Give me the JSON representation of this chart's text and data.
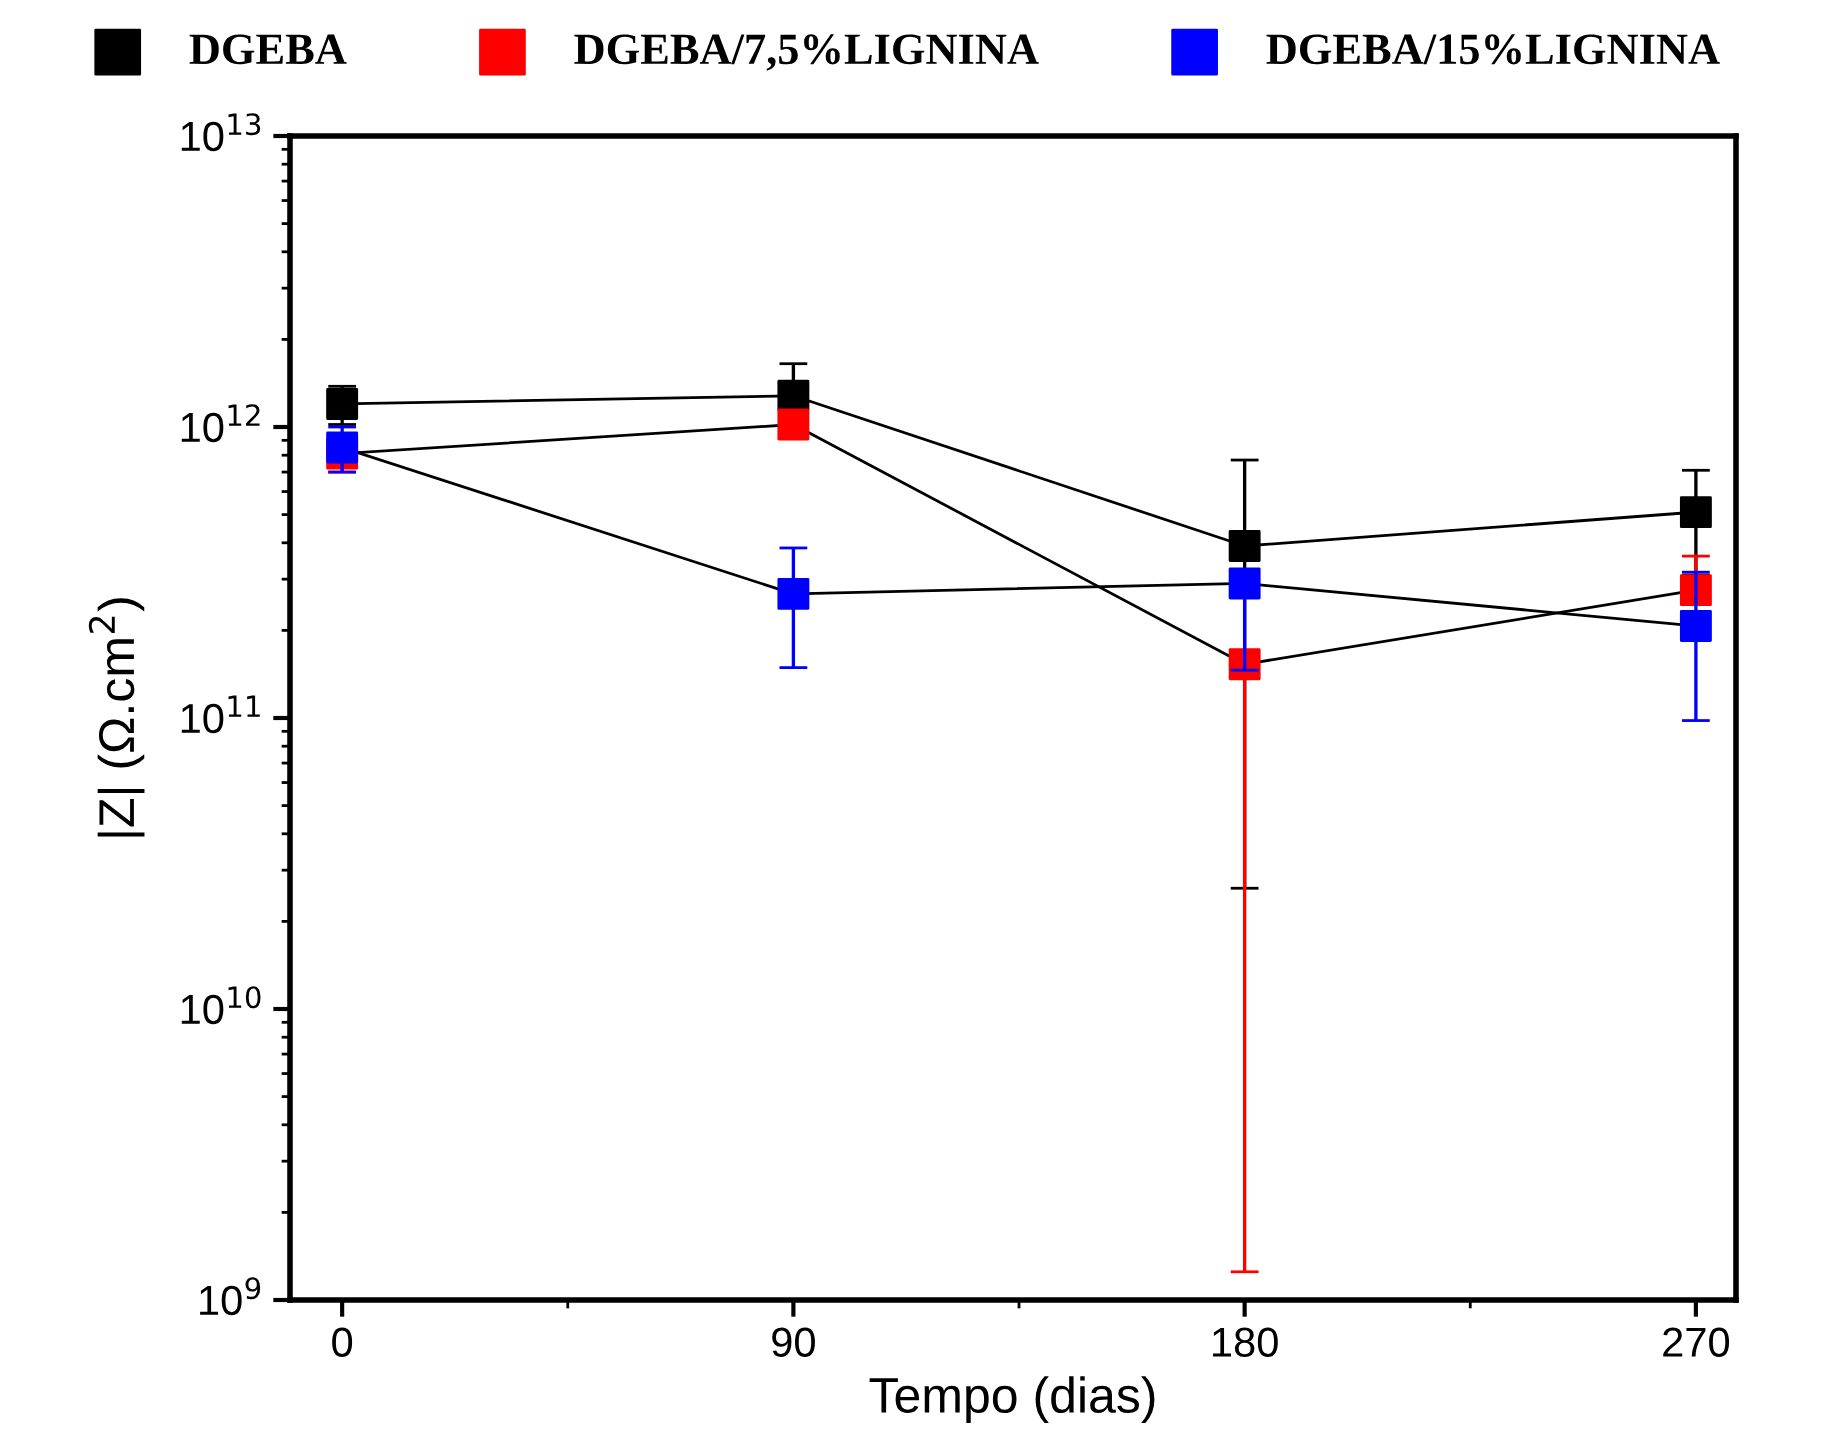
{
  "chart_data": {
    "type": "line",
    "xlabel": "Tempo (dias)",
    "ylabel": "|Z| (Ω.cm$^{2}$)",
    "x": [
      0,
      90,
      180,
      270
    ],
    "series": [
      {
        "name": "DGEBA",
        "color": "#000000",
        "values": [
          1200000000000.0,
          1280000000000.0,
          390000000000.0,
          510000000000.0
        ],
        "errors": [
          [
            1020000000000.0,
            1380000000000.0
          ],
          [
            1140000000000.0,
            1650000000000.0
          ],
          [
            26000000000.0,
            770000000000.0
          ],
          [
            310000000000.0,
            710000000000.0
          ]
        ]
      },
      {
        "name": "DGEBA/7,5%LIGNINA",
        "color": "#ff0000",
        "values": [
          810000000000.0,
          1020000000000.0,
          153000000000.0,
          275000000000.0
        ],
        "errors": [
          [
            700000000000.0,
            920000000000.0
          ],
          null,
          [
            1250000000.0,
            153000000000.0
          ],
          [
            275000000000.0,
            360000000000.0
          ]
        ]
      },
      {
        "name": "DGEBA/15%LIGNINA",
        "color": "#0000ff",
        "values": [
          850000000000.0,
          267000000000.0,
          290000000000.0,
          207000000000.0
        ],
        "errors": [
          [
            700000000000.0,
            1000000000000.0
          ],
          [
            149000000000.0,
            384000000000.0
          ],
          [
            146000000000.0,
            290000000000.0
          ],
          [
            98000000000.0,
            317000000000.0
          ]
        ]
      }
    ],
    "log": "y",
    "xlim": [
      -10.4,
      278
    ],
    "ylim": [
      1000000000.0,
      10000000000000.0
    ],
    "xticks": [
      0,
      90,
      180,
      270
    ],
    "yticks": [
      {
        "value": 1000000000.0,
        "label": "10$^{9}$"
      },
      {
        "value": 10000000000.0,
        "label": "10$^{10}$"
      },
      {
        "value": 100000000000.0,
        "label": "10$^{11}$"
      },
      {
        "value": 1000000000000.0,
        "label": "10$^{12}$"
      },
      {
        "value": 10000000000000.0,
        "label": "10$^{13}$"
      }
    ],
    "marker": "square",
    "line_style": "solid",
    "grid": false,
    "legend": "top"
  }
}
